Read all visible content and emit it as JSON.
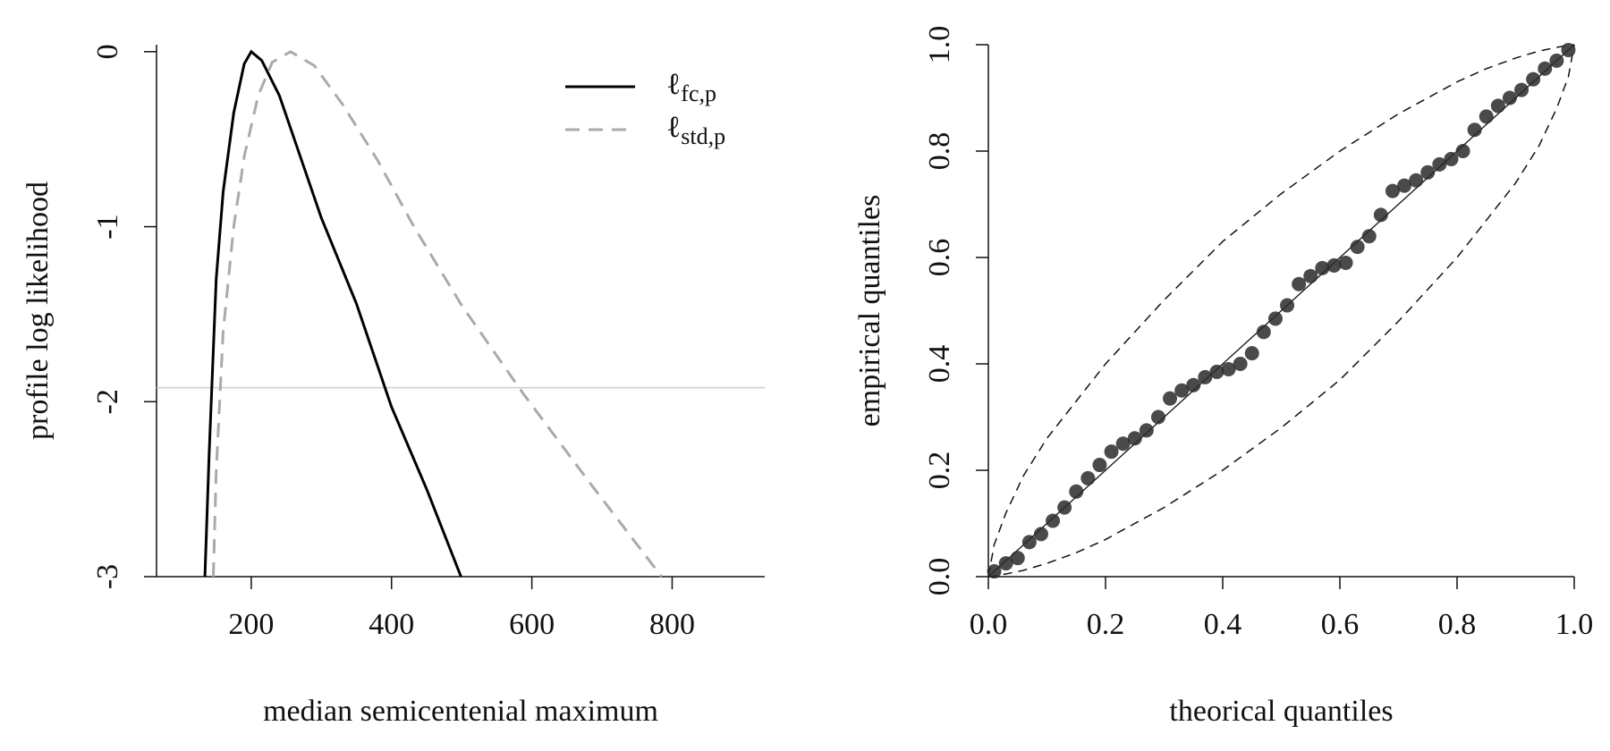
{
  "chart_data": [
    {
      "type": "line",
      "x_label": "median semicentenial maximum",
      "y_label": "profile log likelihood",
      "xlim": [
        65,
        932
      ],
      "ylim": [
        -3,
        0.04
      ],
      "xticks": [
        200,
        400,
        600,
        800
      ],
      "yticks": [
        -3,
        -2,
        -1,
        0
      ],
      "hline": -1.92,
      "hline_color": "#cccccc",
      "legend": "top-right",
      "series": [
        {
          "name": "ℓfc,p",
          "color": "#000000",
          "dash": false,
          "x": [
            134,
            140,
            150,
            160,
            175,
            190,
            200,
            215,
            240,
            270,
            300,
            350,
            400,
            450,
            499
          ],
          "values": [
            -3,
            -2.3,
            -1.3,
            -0.8,
            -0.35,
            -0.07,
            0,
            -0.05,
            -0.25,
            -0.6,
            -0.95,
            -1.44,
            -2.03,
            -2.5,
            -3
          ]
        },
        {
          "name": "ℓstd,p",
          "color": "#aaaaaa",
          "dash": true,
          "x": [
            146,
            150,
            160,
            175,
            190,
            210,
            230,
            256,
            290,
            330,
            380,
            432,
            500,
            587,
            680,
            785
          ],
          "values": [
            -3,
            -2.4,
            -1.6,
            -1.0,
            -0.6,
            -0.25,
            -0.06,
            0,
            -0.08,
            -0.3,
            -0.62,
            -1,
            -1.45,
            -1.95,
            -2.45,
            -3
          ]
        }
      ]
    },
    {
      "type": "scatter",
      "x_label": "theorical quantiles",
      "y_label": "empirical quantiles",
      "xlim": [
        0,
        1
      ],
      "ylim": [
        0,
        1
      ],
      "xticks": [
        {
          "value": 0,
          "label": "0.0"
        },
        {
          "value": 0.2,
          "label": "0.2"
        },
        {
          "value": 0.4,
          "label": "0.4"
        },
        {
          "value": 0.6,
          "label": "0.6"
        },
        {
          "value": 0.8,
          "label": "0.8"
        },
        {
          "value": 1,
          "label": "1.0"
        }
      ],
      "yticks": [
        {
          "value": 0,
          "label": "0.0"
        },
        {
          "value": 0.2,
          "label": "0.2"
        },
        {
          "value": 0.4,
          "label": "0.4"
        },
        {
          "value": 0.6,
          "label": "0.6"
        },
        {
          "value": 0.8,
          "label": "0.8"
        },
        {
          "value": 1,
          "label": "1.0"
        }
      ],
      "color": "#2a2a2a",
      "x": [
        0.01,
        0.03,
        0.05,
        0.07,
        0.09,
        0.11,
        0.13,
        0.15,
        0.17,
        0.19,
        0.21,
        0.23,
        0.25,
        0.27,
        0.29,
        0.31,
        0.33,
        0.35,
        0.37,
        0.39,
        0.41,
        0.43,
        0.45,
        0.47,
        0.49,
        0.51,
        0.53,
        0.55,
        0.57,
        0.59,
        0.61,
        0.63,
        0.65,
        0.67,
        0.69,
        0.71,
        0.73,
        0.75,
        0.77,
        0.79,
        0.81,
        0.83,
        0.85,
        0.87,
        0.89,
        0.91,
        0.93,
        0.95,
        0.97,
        0.99
      ],
      "values": [
        0.01,
        0.025,
        0.035,
        0.065,
        0.08,
        0.105,
        0.13,
        0.16,
        0.185,
        0.21,
        0.235,
        0.25,
        0.26,
        0.275,
        0.3,
        0.335,
        0.35,
        0.36,
        0.375,
        0.385,
        0.39,
        0.4,
        0.42,
        0.46,
        0.485,
        0.51,
        0.55,
        0.565,
        0.58,
        0.585,
        0.59,
        0.62,
        0.64,
        0.68,
        0.725,
        0.735,
        0.745,
        0.76,
        0.775,
        0.785,
        0.8,
        0.84,
        0.865,
        0.885,
        0.9,
        0.915,
        0.935,
        0.955,
        0.97,
        0.99
      ],
      "band": {
        "x": [
          0,
          0.01,
          0.03,
          0.06,
          0.1,
          0.15,
          0.2,
          0.3,
          0.4,
          0.5,
          0.6,
          0.7,
          0.8,
          0.85,
          0.9,
          0.94,
          0.97,
          0.99,
          1
        ],
        "upper": [
          0,
          0.06,
          0.12,
          0.19,
          0.26,
          0.33,
          0.4,
          0.52,
          0.63,
          0.72,
          0.8,
          0.87,
          0.93,
          0.955,
          0.975,
          0.988,
          0.995,
          0.999,
          1
        ],
        "lower": [
          0,
          0.001,
          0.005,
          0.012,
          0.025,
          0.045,
          0.07,
          0.13,
          0.2,
          0.28,
          0.37,
          0.48,
          0.6,
          0.67,
          0.74,
          0.81,
          0.88,
          0.94,
          1
        ]
      }
    }
  ]
}
